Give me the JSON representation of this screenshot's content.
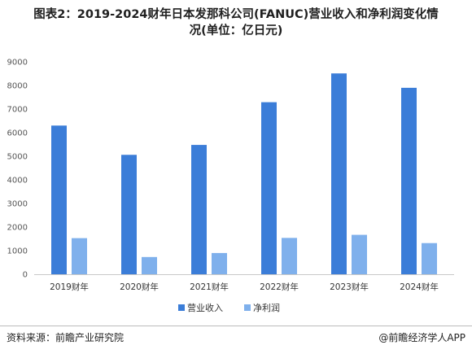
{
  "chart_data": {
    "type": "bar",
    "title": "图表2：2019-2024财年日本发那科公司(FANUC)营业收入和净利润变化情况(单位：亿日元)",
    "categories": [
      "2019财年",
      "2020财年",
      "2021财年",
      "2022财年",
      "2023财年",
      "2024财年"
    ],
    "series": [
      {
        "name": "营业收入",
        "color": "#3b7dd8",
        "values": [
          6300,
          5060,
          5480,
          7290,
          8510,
          7900
        ]
      },
      {
        "name": "净利润",
        "color": "#7fb0ec",
        "values": [
          1530,
          730,
          900,
          1540,
          1670,
          1320
        ]
      }
    ],
    "yticks": [
      0,
      1000,
      2000,
      3000,
      4000,
      5000,
      6000,
      7000,
      8000,
      9000
    ],
    "ylim": [
      0,
      9000
    ],
    "grid": false,
    "legend_position": "bottom"
  },
  "footer": {
    "source": "资料来源：前瞻产业研究院",
    "brand": "@前瞻经济学人APP"
  }
}
